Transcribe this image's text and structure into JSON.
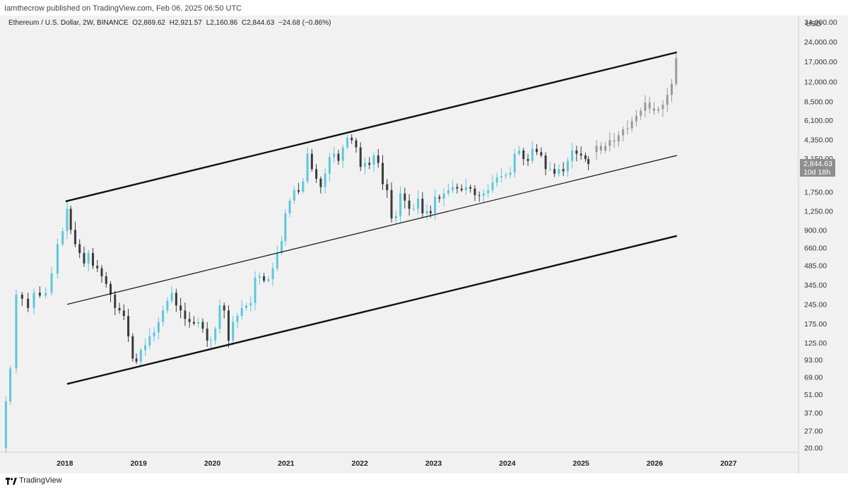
{
  "publish_info": "Iamthecrow published on TradingView.com, Feb 06, 2025 06:50 UTC",
  "legend": {
    "symbol": "Ethereum / U.S. Dollar, 2W, BINANCE",
    "open": "O2,869.62",
    "high": "H2,921.57",
    "low": "L2,160.86",
    "close": "C2,844.63",
    "change": "−24.68 (−0.86%)"
  },
  "footer": {
    "brand": "TradingView"
  },
  "chart_data": {
    "type": "candlestick",
    "title": "",
    "currency_label": "USD",
    "y_scale": "log",
    "ylim": [
      18.5,
      38000
    ],
    "y_ticks": [
      "34,000.00",
      "24,000.00",
      "17,000.00",
      "12,000.00",
      "8,500.00",
      "6,100.00",
      "4,350.00",
      "3,150.00",
      "1,750.00",
      "1,250.00",
      "900.00",
      "660.00",
      "485.00",
      "345.00",
      "245.00",
      "175.00",
      "125.00",
      "93.00",
      "69.00",
      "51.00",
      "37.00",
      "27.00",
      "20.00"
    ],
    "y_tick_values": [
      34000,
      24000,
      17000,
      12000,
      8500,
      6100,
      4350,
      3150,
      1750,
      1250,
      900,
      660,
      485,
      345,
      245,
      175,
      125,
      93,
      69,
      51,
      37,
      27,
      20
    ],
    "x_ticks": [
      "2018",
      "2019",
      "2020",
      "2021",
      "2022",
      "2023",
      "2024",
      "2025",
      "2026",
      "2027"
    ],
    "x_tick_values": [
      2018.0,
      2019.0,
      2020.0,
      2021.0,
      2022.0,
      2023.0,
      2024.0,
      2025.0,
      2026.0,
      2027.0
    ],
    "xlim": [
      2017.12,
      2027.95
    ],
    "last_price_label": "2,844.63",
    "countdown_label": "10d 18h",
    "colors": {
      "up": "#5bc8d9",
      "down": "#3a3a3a",
      "projection": "#9a9a9a",
      "channel": "#111111",
      "price_tag": "#8e8e8e"
    },
    "channel_lines": [
      {
        "name": "upper",
        "from": [
          2018.01,
          1480
        ],
        "to": [
          2026.3,
          20000
        ],
        "weight": "bold"
      },
      {
        "name": "middle",
        "from": [
          2018.03,
          245
        ],
        "to": [
          2026.3,
          3300
        ],
        "weight": "thin"
      },
      {
        "name": "lower",
        "from": [
          2018.03,
          61
        ],
        "to": [
          2026.3,
          810
        ],
        "weight": "bold"
      }
    ],
    "price_path": [
      [
        2017.14,
        20
      ],
      [
        2017.2,
        45
      ],
      [
        2017.26,
        80
      ],
      [
        2017.34,
        290
      ],
      [
        2017.42,
        270
      ],
      [
        2017.5,
        230
      ],
      [
        2017.58,
        300
      ],
      [
        2017.66,
        285
      ],
      [
        2017.74,
        300
      ],
      [
        2017.82,
        420
      ],
      [
        2017.9,
        700
      ],
      [
        2017.97,
        880
      ],
      [
        2018.03,
        1300
      ],
      [
        2018.08,
        900
      ],
      [
        2018.14,
        700
      ],
      [
        2018.2,
        600
      ],
      [
        2018.26,
        500
      ],
      [
        2018.32,
        600
      ],
      [
        2018.38,
        480
      ],
      [
        2018.44,
        460
      ],
      [
        2018.5,
        400
      ],
      [
        2018.56,
        350
      ],
      [
        2018.62,
        290
      ],
      [
        2018.68,
        230
      ],
      [
        2018.74,
        220
      ],
      [
        2018.8,
        200
      ],
      [
        2018.86,
        140
      ],
      [
        2018.92,
        95
      ],
      [
        2018.97,
        90
      ],
      [
        2019.03,
        110
      ],
      [
        2019.09,
        120
      ],
      [
        2019.15,
        140
      ],
      [
        2019.21,
        150
      ],
      [
        2019.27,
        180
      ],
      [
        2019.33,
        220
      ],
      [
        2019.39,
        260
      ],
      [
        2019.45,
        300
      ],
      [
        2019.51,
        240
      ],
      [
        2019.57,
        220
      ],
      [
        2019.63,
        190
      ],
      [
        2019.69,
        180
      ],
      [
        2019.75,
        175
      ],
      [
        2019.81,
        180
      ],
      [
        2019.87,
        160
      ],
      [
        2019.93,
        130
      ],
      [
        2019.98,
        130
      ],
      [
        2020.04,
        160
      ],
      [
        2020.1,
        240
      ],
      [
        2020.16,
        220
      ],
      [
        2020.22,
        130
      ],
      [
        2020.28,
        180
      ],
      [
        2020.34,
        200
      ],
      [
        2020.4,
        230
      ],
      [
        2020.46,
        240
      ],
      [
        2020.52,
        250
      ],
      [
        2020.58,
        390
      ],
      [
        2020.64,
        400
      ],
      [
        2020.7,
        370
      ],
      [
        2020.76,
        380
      ],
      [
        2020.82,
        460
      ],
      [
        2020.88,
        600
      ],
      [
        2020.94,
        740
      ],
      [
        2020.99,
        1200
      ],
      [
        2021.05,
        1500
      ],
      [
        2021.11,
        1800
      ],
      [
        2021.17,
        1750
      ],
      [
        2021.23,
        2100
      ],
      [
        2021.29,
        3400
      ],
      [
        2021.35,
        2600
      ],
      [
        2021.41,
        2200
      ],
      [
        2021.47,
        1900
      ],
      [
        2021.53,
        2400
      ],
      [
        2021.59,
        3200
      ],
      [
        2021.65,
        3400
      ],
      [
        2021.71,
        3000
      ],
      [
        2021.77,
        3800
      ],
      [
        2021.83,
        4500
      ],
      [
        2021.89,
        4300
      ],
      [
        2021.95,
        3800
      ],
      [
        2022.01,
        2700
      ],
      [
        2022.07,
        2900
      ],
      [
        2022.13,
        2800
      ],
      [
        2022.19,
        3300
      ],
      [
        2022.25,
        2900
      ],
      [
        2022.31,
        2000
      ],
      [
        2022.37,
        1800
      ],
      [
        2022.43,
        1100
      ],
      [
        2022.49,
        1150
      ],
      [
        2022.55,
        1700
      ],
      [
        2022.61,
        1500
      ],
      [
        2022.67,
        1300
      ],
      [
        2022.73,
        1300
      ],
      [
        2022.79,
        1550
      ],
      [
        2022.85,
        1200
      ],
      [
        2022.91,
        1250
      ],
      [
        2022.96,
        1200
      ],
      [
        2023.02,
        1600
      ],
      [
        2023.08,
        1550
      ],
      [
        2023.14,
        1700
      ],
      [
        2023.2,
        1800
      ],
      [
        2023.26,
        1900
      ],
      [
        2023.32,
        1850
      ],
      [
        2023.38,
        1800
      ],
      [
        2023.44,
        1900
      ],
      [
        2023.5,
        1850
      ],
      [
        2023.56,
        1650
      ],
      [
        2023.62,
        1640
      ],
      [
        2023.68,
        1700
      ],
      [
        2023.74,
        1800
      ],
      [
        2023.8,
        2050
      ],
      [
        2023.86,
        2250
      ],
      [
        2023.92,
        2300
      ],
      [
        2023.98,
        2350
      ],
      [
        2024.04,
        2450
      ],
      [
        2024.1,
        3400
      ],
      [
        2024.16,
        3600
      ],
      [
        2024.22,
        3100
      ],
      [
        2024.28,
        3000
      ],
      [
        2024.34,
        3700
      ],
      [
        2024.4,
        3500
      ],
      [
        2024.46,
        3300
      ],
      [
        2024.52,
        2600
      ],
      [
        2024.58,
        2600
      ],
      [
        2024.64,
        2400
      ],
      [
        2024.7,
        2600
      ],
      [
        2024.76,
        2500
      ],
      [
        2024.82,
        3000
      ],
      [
        2024.88,
        3600
      ],
      [
        2024.94,
        3400
      ],
      [
        2025.0,
        3300
      ],
      [
        2025.06,
        3100
      ],
      [
        2025.1,
        2844.63
      ]
    ],
    "projection_path": [
      [
        2025.15,
        3500
      ],
      [
        2025.21,
        3900
      ],
      [
        2025.27,
        3600
      ],
      [
        2025.33,
        3900
      ],
      [
        2025.39,
        4300
      ],
      [
        2025.45,
        4200
      ],
      [
        2025.51,
        4700
      ],
      [
        2025.57,
        5200
      ],
      [
        2025.63,
        5300
      ],
      [
        2025.69,
        6000
      ],
      [
        2025.75,
        6600
      ],
      [
        2025.81,
        7200
      ],
      [
        2025.87,
        8300
      ],
      [
        2025.93,
        7500
      ],
      [
        2025.99,
        7200
      ],
      [
        2026.05,
        7400
      ],
      [
        2026.11,
        8000
      ],
      [
        2026.17,
        9500
      ],
      [
        2026.23,
        11500
      ],
      [
        2026.29,
        18000
      ]
    ]
  }
}
